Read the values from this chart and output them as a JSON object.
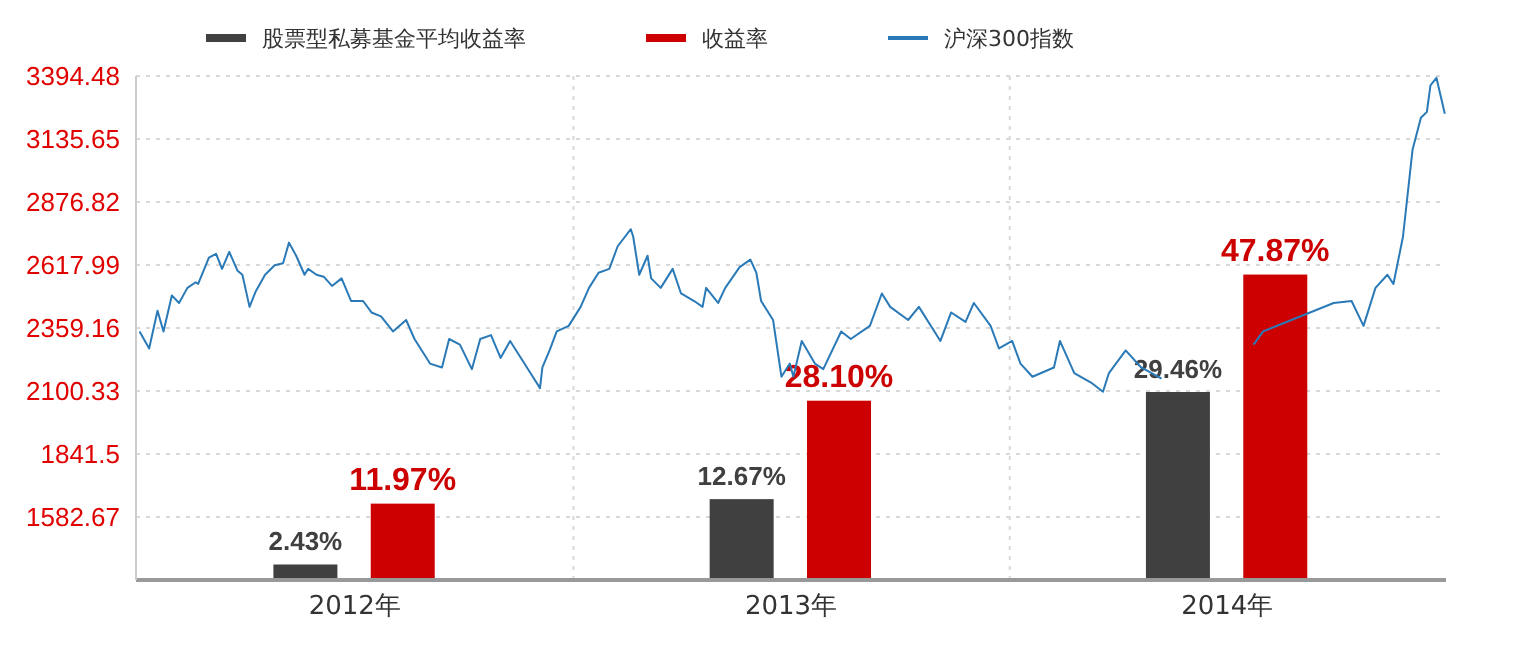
{
  "chart_data": {
    "type": "bar",
    "xticks": [
      {
        "value": "2012-07-02",
        "label": "2012年"
      },
      {
        "value": "2013-07-02",
        "label": "2013年"
      },
      {
        "value": "2014-07-02",
        "label": "2014年"
      }
    ],
    "ylim": [
      1323.84,
      3394.48
    ],
    "yticks": [
      1582.67,
      1841.5,
      2100.33,
      2359.16,
      2617.99,
      2876.82,
      3135.65,
      3394.48
    ],
    "xlim": [
      "2012-01-01",
      "2015-01-01"
    ],
    "grid": "y",
    "ref_lines": [
      {
        "axis": "x",
        "value": "2013-01-01",
        "color": "#d8d8d8",
        "line_style": "dotted"
      },
      {
        "axis": "x",
        "value": "2014-01-01",
        "color": "#d8d8d8",
        "line_style": "dotted"
      }
    ],
    "legend": "top",
    "series": [
      {
        "name": "股票型私募基金平均收益率",
        "axis": "y2",
        "color": "#404040",
        "x": [
          "2012-05-22",
          "2013-05-22",
          "2014-05-22"
        ],
        "values": [
          2.43,
          12.67,
          29.46
        ],
        "value_labels": [
          "2.43%",
          "12.67%",
          "29.46%"
        ]
      },
      {
        "name": "收益率",
        "axis": "y2",
        "color": "#cc0000",
        "x": [
          "2012-08-11",
          "2013-08-11",
          "2014-08-11"
        ],
        "values": [
          11.97,
          28.1,
          47.87
        ],
        "value_labels": [
          "11.97%",
          "28.10%",
          "47.87%"
        ]
      },
      {
        "name": "沪深300指数",
        "type": "line",
        "color": "#2a7ab8",
        "x": [
          "2012-01-04",
          "2012-01-12",
          "2012-01-19",
          "2012-01-24",
          "2012-01-31",
          "2012-02-06",
          "2012-02-13",
          "2012-02-20",
          "2012-02-22",
          "2012-03-02",
          "2012-03-08",
          "2012-03-13",
          "2012-03-19",
          "2012-03-26",
          "2012-03-30",
          "2012-04-05",
          "2012-04-10",
          "2012-04-18",
          "2012-04-26",
          "2012-05-03",
          "2012-05-08",
          "2012-05-14",
          "2012-05-21",
          "2012-05-24",
          "2012-05-31",
          "2012-06-06",
          "2012-06-13",
          "2012-06-21",
          "2012-06-29",
          "2012-07-09",
          "2012-07-16",
          "2012-07-24",
          "2012-08-03",
          "2012-08-14",
          "2012-08-21",
          "2012-09-03",
          "2012-09-13",
          "2012-09-19",
          "2012-09-28",
          "2012-10-08",
          "2012-10-15",
          "2012-10-24",
          "2012-11-01",
          "2012-11-09",
          "2012-11-26",
          "2012-12-04",
          "2012-12-06",
          "2012-12-12",
          "2012-12-18",
          "2012-12-28",
          "2013-01-07",
          "2013-01-14",
          "2013-01-22",
          "2013-01-31",
          "2013-02-07",
          "2013-02-18",
          "2013-02-20",
          "2013-02-25",
          "2013-03-04",
          "2013-03-07",
          "2013-03-15",
          "2013-03-25",
          "2013-04-01",
          "2013-04-12",
          "2013-04-19",
          "2013-04-22",
          "2013-05-02",
          "2013-05-08",
          "2013-05-20",
          "2013-05-29",
          "2013-06-03",
          "2013-06-07",
          "2013-06-17",
          "2013-06-24",
          "2013-07-01",
          "2013-07-04",
          "2013-07-11",
          "2013-07-22",
          "2013-07-29",
          "2013-08-13",
          "2013-08-21",
          "2013-09-06",
          "2013-09-16",
          "2013-09-23",
          "2013-10-08",
          "2013-10-17",
          "2013-11-04",
          "2013-11-13",
          "2013-11-25",
          "2013-12-02",
          "2013-12-16",
          "2013-12-23",
          "2014-01-03",
          "2014-01-10",
          "2014-01-20",
          "2014-02-07",
          "2014-02-12",
          "2014-02-24",
          "2014-03-10",
          "2014-03-20",
          "2014-03-25",
          "2014-04-08",
          "2014-04-21",
          "2014-05-08",
          "2014-06-03",
          "2014-06-26",
          "2014-07-24",
          "2014-08-01",
          "2014-09-29",
          "2014-10-14",
          "2014-10-24",
          "2014-11-03",
          "2014-11-13",
          "2014-11-18",
          "2014-11-26",
          "2014-12-04",
          "2014-12-11",
          "2014-12-16",
          "2014-12-19",
          "2014-12-24",
          "2014-12-31"
        ],
        "values": [
          2345,
          2275,
          2430,
          2345,
          2493,
          2462,
          2524,
          2547,
          2540,
          2648,
          2664,
          2602,
          2672,
          2594,
          2578,
          2446,
          2508,
          2578,
          2617,
          2625,
          2710,
          2656,
          2578,
          2602,
          2578,
          2570,
          2532,
          2563,
          2470,
          2470,
          2423,
          2407,
          2345,
          2392,
          2314,
          2213,
          2197,
          2314,
          2291,
          2190,
          2314,
          2330,
          2236,
          2306,
          2174,
          2112,
          2197,
          2267,
          2345,
          2368,
          2446,
          2524,
          2586,
          2602,
          2695,
          2765,
          2734,
          2578,
          2656,
          2563,
          2524,
          2602,
          2501,
          2470,
          2446,
          2524,
          2462,
          2524,
          2609,
          2640,
          2586,
          2470,
          2392,
          2159,
          2213,
          2159,
          2306,
          2213,
          2190,
          2345,
          2314,
          2368,
          2501,
          2446,
          2392,
          2446,
          2306,
          2423,
          2384,
          2462,
          2368,
          2275,
          2306,
          2213,
          2159,
          2197,
          2306,
          2174,
          2135,
          2097,
          2174,
          2267,
          2197,
          2151,
          null,
          null,
          2291,
          2345,
          2462,
          2470,
          2368,
          2524,
          2578,
          2540,
          2734,
          3091,
          3223,
          3247,
          3356,
          3387,
          3239
        ]
      }
    ]
  }
}
